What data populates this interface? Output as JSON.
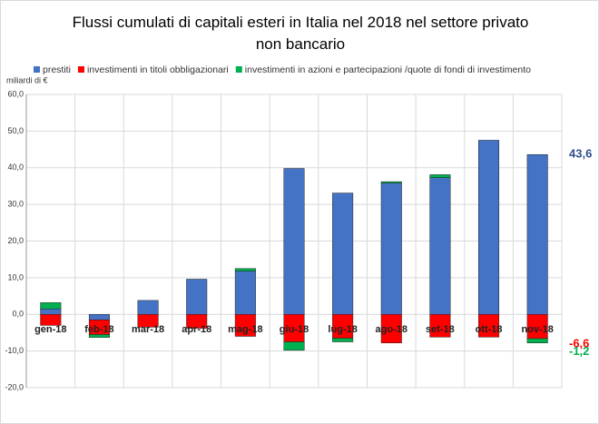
{
  "chart_data": {
    "type": "bar",
    "stacked": true,
    "title": "Flussi cumulati di capitali esteri in Italia nel 2018 nel settore privato non bancario",
    "y_axis_label": "miliardi di €",
    "categories": [
      "gen-18",
      "feb-18",
      "mar-18",
      "apr-18",
      "mag-18",
      "giu-18",
      "lug-18",
      "ago-18",
      "set-18",
      "ott-18",
      "nov-18"
    ],
    "series": [
      {
        "name": "prestiti",
        "color": "#4472c4",
        "values": [
          1.5,
          -1.5,
          3.8,
          9.6,
          11.8,
          39.8,
          33.1,
          35.8,
          37.3,
          47.5,
          43.6
        ],
        "value_labels": [
          null,
          null,
          null,
          null,
          null,
          null,
          null,
          null,
          null,
          null,
          "43,6"
        ]
      },
      {
        "name": "investimenti in titoli obbligazionari",
        "color": "#ff0000",
        "values": [
          -3,
          -4,
          -3.5,
          -3.8,
          -6,
          -7.5,
          -6.5,
          -7.8,
          -6.2,
          -6.2,
          -6.6
        ],
        "value_labels": [
          null,
          null,
          null,
          null,
          null,
          null,
          null,
          null,
          null,
          null,
          "-6,6"
        ]
      },
      {
        "name": "investimenti in azioni e partecipazioni /quote di fondi di investimento",
        "color": "#00b050",
        "values": [
          1.7,
          -0.8,
          0,
          0,
          0.7,
          -2.3,
          -1,
          0.4,
          0.8,
          0,
          -1.2
        ],
        "value_labels": [
          null,
          null,
          null,
          null,
          null,
          null,
          null,
          null,
          null,
          null,
          "-1,2"
        ]
      }
    ],
    "ylim": [
      -20,
      60
    ],
    "yticks": [
      {
        "value": -20,
        "label": "-20,0"
      },
      {
        "value": -10,
        "label": "-10,0"
      },
      {
        "value": 0,
        "label": "0,0"
      },
      {
        "value": 10,
        "label": "10,0"
      },
      {
        "value": 20,
        "label": "20,0"
      },
      {
        "value": 30,
        "label": "30,0"
      },
      {
        "value": 40,
        "label": "40,0"
      },
      {
        "value": 50,
        "label": "50,0"
      },
      {
        "value": 60,
        "label": "60,0"
      }
    ],
    "grid": true
  }
}
